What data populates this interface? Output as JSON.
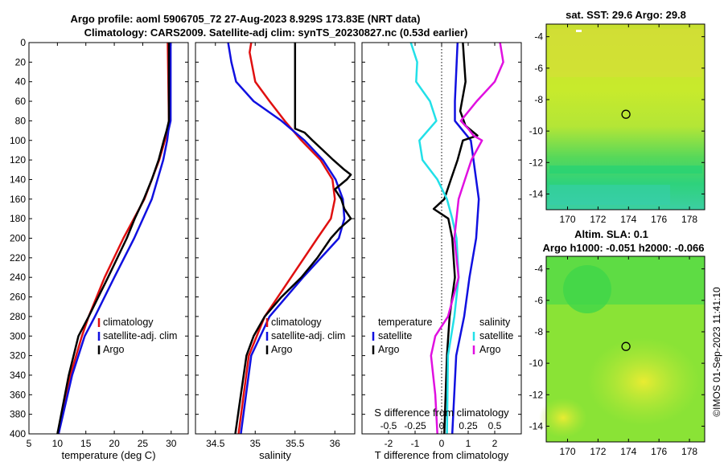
{
  "header": {
    "title_line1": "Argo profile: aoml 5906705_72 27-Aug-2023 8.929S 173.83E (NRT data)",
    "title_line2": "Climatology: CARS2009. Satellite-adj clim: synTS_20230827.nc (0.53d earlier)"
  },
  "depth_axis": {
    "range": [
      0,
      400
    ],
    "ticks": [
      "0",
      "20",
      "40",
      "60",
      "80",
      "100",
      "120",
      "140",
      "160",
      "180",
      "200",
      "220",
      "240",
      "260",
      "280",
      "300",
      "320",
      "340",
      "360",
      "380",
      "400"
    ]
  },
  "colors": {
    "climatology": "#e01010",
    "satellite": "#1010e0",
    "argo": "#000000",
    "sat_sal_diff": "#22e0e8",
    "argo_sal_diff": "#e010e0"
  },
  "chart_data": [
    {
      "type": "line",
      "panel": "temperature",
      "xlabel": "temperature (deg C)",
      "xlim": [
        5,
        33
      ],
      "xticks": [
        "5",
        "10",
        "15",
        "20",
        "25",
        "30"
      ],
      "legend": [
        "climatology",
        "satellite-adj. clim",
        "Argo"
      ],
      "series": [
        {
          "name": "climatology",
          "depth": [
            0,
            80,
            90,
            120,
            160,
            200,
            240,
            280,
            300,
            340,
            400
          ],
          "values": [
            29.4,
            29.6,
            29.4,
            27.9,
            25.3,
            21.6,
            18.3,
            15.5,
            14.3,
            12.3,
            10.2
          ]
        },
        {
          "name": "satellite-adj. clim",
          "depth": [
            0,
            80,
            90,
            100,
            120,
            160,
            200,
            240,
            280,
            300,
            340,
            400
          ],
          "values": [
            29.9,
            29.9,
            29.5,
            29.3,
            28.6,
            26.6,
            23.5,
            20.0,
            16.6,
            14.8,
            12.6,
            10.2
          ]
        },
        {
          "name": "Argo",
          "depth": [
            0,
            80,
            90,
            100,
            120,
            140,
            160,
            180,
            200,
            240,
            280,
            300,
            340,
            400
          ],
          "values": [
            29.6,
            29.6,
            29.2,
            28.7,
            27.8,
            26.6,
            25.2,
            23.6,
            22.2,
            18.9,
            15.5,
            13.7,
            12.0,
            10.0
          ]
        }
      ]
    },
    {
      "type": "line",
      "panel": "salinity",
      "xlabel": "salinity",
      "xlim": [
        34.25,
        36.25
      ],
      "xticks": [
        "34.5",
        "35",
        "35.5",
        "36"
      ],
      "legend": [
        "climatology",
        "satellite-adj. clim",
        "Argo"
      ],
      "series": [
        {
          "name": "climatology",
          "depth": [
            0,
            10,
            40,
            60,
            80,
            100,
            120,
            140,
            160,
            180,
            200,
            240,
            280,
            320,
            400
          ],
          "values": [
            34.95,
            34.93,
            35.0,
            35.18,
            35.37,
            35.58,
            35.82,
            35.97,
            36.0,
            35.95,
            35.78,
            35.45,
            35.12,
            34.92,
            34.79
          ]
        },
        {
          "name": "satellite-adj. clim",
          "depth": [
            0,
            20,
            40,
            60,
            80,
            100,
            120,
            140,
            160,
            180,
            200,
            240,
            280,
            320,
            400
          ],
          "values": [
            34.66,
            34.7,
            34.76,
            34.98,
            35.33,
            35.62,
            35.85,
            36.01,
            36.1,
            36.12,
            36.05,
            35.6,
            35.18,
            34.95,
            34.82
          ]
        },
        {
          "name": "Argo",
          "depth": [
            0,
            88,
            92,
            100,
            110,
            120,
            130,
            135,
            140,
            150,
            160,
            170,
            180,
            190,
            200,
            220,
            240,
            260,
            280,
            300,
            320,
            360,
            400
          ],
          "values": [
            35.5,
            35.5,
            35.62,
            35.72,
            35.85,
            35.98,
            36.12,
            36.2,
            36.15,
            36.0,
            36.08,
            36.12,
            36.2,
            36.06,
            35.95,
            35.78,
            35.58,
            35.33,
            35.12,
            34.98,
            34.89,
            34.82,
            34.75
          ]
        }
      ]
    },
    {
      "type": "line",
      "panel": "difference",
      "xlabel": "T difference from climatology",
      "x2label": "S difference from climatology",
      "xlim": [
        -3,
        3
      ],
      "xticks": [
        "-2",
        "-1",
        "0",
        "1",
        "2"
      ],
      "x2lim": [
        -0.75,
        0.75
      ],
      "x2ticks": [
        "-0.5",
        "-0.25",
        "0",
        "0.25",
        "0.5"
      ],
      "legend": [
        "temperature",
        "satellite",
        "Argo",
        "salinity",
        "satellite",
        "Argo"
      ],
      "series": [
        {
          "name": "temperature satellite",
          "axis": "T",
          "depth": [
            0,
            60,
            80,
            100,
            120,
            160,
            200,
            240,
            280,
            320,
            400
          ],
          "values": [
            0.6,
            0.5,
            0.5,
            1.1,
            1.2,
            1.4,
            1.3,
            1.05,
            0.85,
            0.55,
            0.4
          ]
        },
        {
          "name": "temperature Argo",
          "axis": "T",
          "depth": [
            0,
            40,
            70,
            85,
            95,
            100,
            120,
            140,
            160,
            170,
            180,
            200,
            240,
            280,
            320,
            400
          ],
          "values": [
            0.8,
            0.9,
            0.7,
            0.9,
            1.35,
            0.8,
            0.6,
            0.35,
            0.1,
            -0.3,
            0.25,
            0.4,
            0.5,
            0.3,
            0.2,
            0.1
          ]
        },
        {
          "name": "salinity satellite",
          "axis": "S",
          "depth": [
            0,
            20,
            40,
            60,
            80,
            100,
            120,
            140,
            160,
            180,
            200,
            240,
            280,
            320,
            400
          ],
          "values": [
            -0.29,
            -0.23,
            -0.24,
            -0.11,
            -0.05,
            -0.21,
            -0.18,
            -0.04,
            0.05,
            0.1,
            0.14,
            0.16,
            0.12,
            0.06,
            0.05
          ]
        },
        {
          "name": "salinity Argo",
          "axis": "S",
          "depth": [
            0,
            20,
            40,
            60,
            80,
            88,
            95,
            100,
            120,
            140,
            160,
            200,
            240,
            280,
            300,
            320,
            360,
            400
          ],
          "values": [
            0.55,
            0.58,
            0.5,
            0.33,
            0.18,
            0.25,
            0.3,
            0.38,
            0.28,
            0.22,
            0.16,
            0.12,
            0.16,
            0.06,
            -0.06,
            -0.1,
            -0.06,
            -0.04
          ]
        }
      ]
    },
    {
      "type": "heatmap",
      "panel": "sst_map",
      "title": "sat. SST: 29.6 Argo: 29.8",
      "xlim": [
        168.6,
        179
      ],
      "ylim": [
        -15,
        -3.2
      ],
      "xticks": [
        "170",
        "172",
        "174",
        "176",
        "178"
      ],
      "yticks": [
        "-4",
        "-6",
        "-8",
        "-10",
        "-12",
        "-14"
      ],
      "argo_position": [
        173.83,
        -8.929
      ]
    },
    {
      "type": "heatmap",
      "panel": "sla_map",
      "title": "Altim. SLA: 0.1",
      "subtitle": "Argo h1000: -0.051 h2000: -0.066",
      "xlim": [
        168.6,
        179
      ],
      "ylim": [
        -15,
        -3.2
      ],
      "xticks": [
        "170",
        "172",
        "174",
        "176",
        "178"
      ],
      "yticks": [
        "-4",
        "-6",
        "-8",
        "-10",
        "-12",
        "-14"
      ],
      "argo_position": [
        173.83,
        -8.929
      ]
    }
  ],
  "footer": {
    "credit": "©IMOS 01-Sep-2023 11:41:10"
  }
}
